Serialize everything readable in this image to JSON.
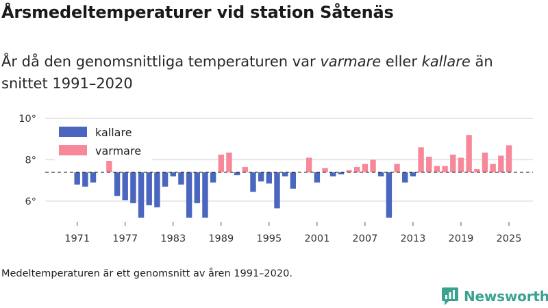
{
  "title": "Årsmedeltemperaturer vid station Såtenäs",
  "subtitle": {
    "prefix": "År då den genomsnittliga temperaturen var ",
    "warm_word": "varmare",
    "middle": " eller ",
    "cold_word": "kallare",
    "suffix": " än snittet 1991–2020"
  },
  "footnote": "Medeltemperaturen är ett genomsnitt av åren 1991–2020.",
  "brand": {
    "name": "Newsworthy",
    "color": "#3aa38f"
  },
  "colors": {
    "colder": "#4a66bf",
    "warmer": "#f7889a",
    "grid": "#dedede",
    "baseline": "#333333"
  },
  "chart_data": {
    "type": "bar",
    "title": "Årsmedeltemperaturer vid station Såtenäs",
    "xlabel": "",
    "ylabel": "",
    "baseline": 7.4,
    "ylim": [
      5.0,
      10.3
    ],
    "yticks": [
      {
        "value": 6,
        "label": "6°"
      },
      {
        "value": 8,
        "label": "8°"
      },
      {
        "value": 10,
        "label": "10°"
      }
    ],
    "xlim": [
      1967,
      2028
    ],
    "xticks": [
      {
        "value": 1971,
        "label": "1971"
      },
      {
        "value": 1977,
        "label": "1977"
      },
      {
        "value": 1983,
        "label": "1983"
      },
      {
        "value": 1989,
        "label": "1989"
      },
      {
        "value": 1995,
        "label": "1995"
      },
      {
        "value": 2001,
        "label": "2001"
      },
      {
        "value": 2007,
        "label": "2007"
      },
      {
        "value": 2013,
        "label": "2013"
      },
      {
        "value": 2019,
        "label": "2019"
      },
      {
        "value": 2025,
        "label": "2025"
      }
    ],
    "legend": {
      "placement": "top-left",
      "items": [
        {
          "key": "colder",
          "label": "kallare"
        },
        {
          "key": "warmer",
          "label": "varmare"
        }
      ]
    },
    "series": [
      {
        "name": "Årsmedeltemperatur",
        "x": [
          1971,
          1972,
          1973,
          1974,
          1975,
          1976,
          1977,
          1978,
          1979,
          1980,
          1981,
          1982,
          1983,
          1984,
          1985,
          1986,
          1987,
          1988,
          1989,
          1990,
          1991,
          1992,
          1993,
          1994,
          1995,
          1996,
          1997,
          1998,
          1999,
          2000,
          2001,
          2002,
          2003,
          2004,
          2005,
          2006,
          2007,
          2008,
          2009,
          2010,
          2011,
          2012,
          2013,
          2014,
          2015,
          2016,
          2017,
          2018,
          2019,
          2020,
          2021,
          2022,
          2023,
          2024,
          2025
        ],
        "values": [
          6.8,
          6.7,
          6.9,
          7.4,
          8.0,
          6.25,
          6.05,
          5.9,
          5.2,
          5.8,
          5.7,
          6.7,
          7.2,
          6.8,
          5.2,
          5.9,
          5.2,
          6.9,
          8.25,
          8.35,
          7.25,
          7.65,
          6.45,
          6.95,
          6.85,
          5.65,
          7.2,
          6.6,
          7.4,
          8.1,
          6.9,
          7.6,
          7.2,
          7.3,
          7.5,
          7.65,
          7.8,
          8.0,
          7.2,
          5.2,
          7.8,
          6.9,
          7.2,
          8.6,
          8.15,
          7.7,
          7.7,
          8.25,
          8.1,
          9.2,
          7.55,
          8.35,
          7.8,
          8.2,
          8.7
        ]
      }
    ]
  }
}
